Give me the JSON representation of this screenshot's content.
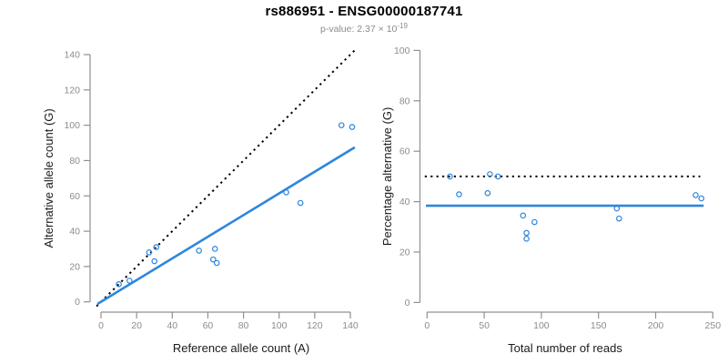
{
  "header": {
    "title": "rs886951 - ENSG00000187741",
    "subtitle_prefix": "p-value: 2.37 × 10",
    "subtitle_exponent": "-19"
  },
  "colors": {
    "point": "#2E86DE",
    "fit_line": "#2E86DE",
    "identity_line": "#000000",
    "axis": "#909090",
    "tick_label": "#8c8c8c",
    "axis_label": "#1a1a1a"
  },
  "chart_data": [
    {
      "id": "allele-count-scatter",
      "type": "scatter",
      "xlabel": "Reference allele count (A)",
      "ylabel": "Alternative allele count (G)",
      "xlim": [
        0,
        140
      ],
      "ylim": [
        0,
        140
      ],
      "xticks": [
        0,
        20,
        40,
        60,
        80,
        100,
        120,
        140
      ],
      "yticks": [
        0,
        20,
        40,
        60,
        80,
        100,
        120,
        140
      ],
      "grid": false,
      "points": [
        [
          10,
          10
        ],
        [
          16,
          12
        ],
        [
          27,
          28
        ],
        [
          31,
          31
        ],
        [
          30,
          23
        ],
        [
          55,
          29
        ],
        [
          64,
          30
        ],
        [
          63,
          24
        ],
        [
          65,
          22
        ],
        [
          104,
          62
        ],
        [
          112,
          56
        ],
        [
          135,
          100
        ],
        [
          141,
          99
        ]
      ],
      "lines": [
        {
          "name": "identity-line-dotted",
          "style": "dotted",
          "color_key": "identity_line",
          "from": [
            -2.5,
            -2.5
          ],
          "to": [
            142.5,
            142.5
          ]
        },
        {
          "name": "fit-line-solid",
          "style": "solid",
          "color_key": "fit_line",
          "from": [
            -2,
            -1.2
          ],
          "to": [
            142.5,
            87.5
          ]
        }
      ]
    },
    {
      "id": "percentage-vs-reads-scatter",
      "type": "scatter",
      "xlabel": "Total number of reads",
      "ylabel": "Percentage alternative (G)",
      "xlim": [
        0,
        250
      ],
      "ylim": [
        0,
        100
      ],
      "xticks": [
        0,
        50,
        100,
        150,
        200,
        250
      ],
      "yticks": [
        0,
        20,
        40,
        60,
        80,
        100
      ],
      "grid": false,
      "points": [
        [
          20,
          50
        ],
        [
          28,
          42.9
        ],
        [
          55,
          50.9
        ],
        [
          62,
          50
        ],
        [
          53,
          43.4
        ],
        [
          84,
          34.5
        ],
        [
          94,
          31.9
        ],
        [
          87,
          27.6
        ],
        [
          87,
          25.3
        ],
        [
          166,
          37.3
        ],
        [
          168,
          33.3
        ],
        [
          235,
          42.6
        ],
        [
          240,
          41.3
        ]
      ],
      "lines": [
        {
          "name": "expected-50pct-line-dotted",
          "style": "dotted",
          "color_key": "identity_line",
          "from": [
            -2,
            50
          ],
          "to": [
            239,
            50
          ]
        },
        {
          "name": "fit-line-solid",
          "style": "solid",
          "color_key": "fit_line",
          "from": [
            -1,
            38.4
          ],
          "to": [
            242,
            38.4
          ]
        }
      ]
    }
  ]
}
